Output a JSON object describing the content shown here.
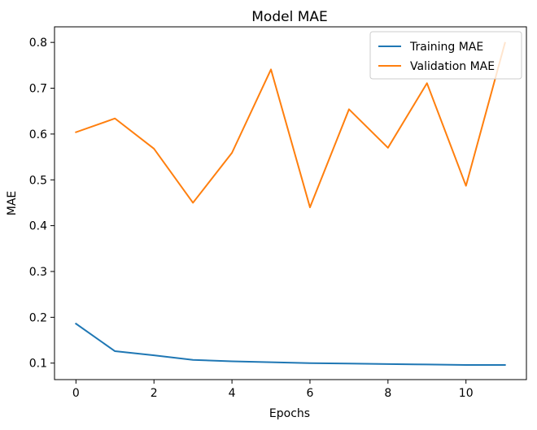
{
  "chart_data": {
    "type": "line",
    "title": "Model MAE",
    "xlabel": "Epochs",
    "ylabel": "MAE",
    "x": [
      0,
      1,
      2,
      3,
      4,
      5,
      6,
      7,
      8,
      9,
      10,
      11
    ],
    "xlim": [
      -0.55,
      11.55
    ],
    "ylim": [
      0.064,
      0.834
    ],
    "xticks": [
      0,
      2,
      4,
      6,
      8,
      10
    ],
    "yticks": [
      0.1,
      0.2,
      0.3,
      0.4,
      0.5,
      0.6,
      0.7,
      0.8
    ],
    "ytick_labels": [
      "0.1",
      "0.2",
      "0.3",
      "0.4",
      "0.5",
      "0.6",
      "0.7",
      "0.8"
    ],
    "grid": false,
    "legend_position": "top-right",
    "series": [
      {
        "name": "Training MAE",
        "color": "#1f77b4",
        "values": [
          0.186,
          0.126,
          0.117,
          0.107,
          0.104,
          0.102,
          0.1,
          0.099,
          0.098,
          0.097,
          0.096,
          0.096
        ]
      },
      {
        "name": "Validation MAE",
        "color": "#ff7f0e",
        "values": [
          0.604,
          0.634,
          0.568,
          0.45,
          0.559,
          0.741,
          0.44,
          0.654,
          0.57,
          0.711,
          0.487,
          0.799
        ]
      }
    ]
  }
}
